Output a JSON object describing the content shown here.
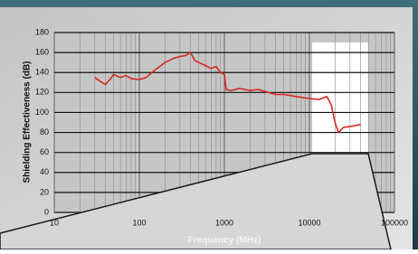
{
  "chart_data": {
    "type": "line",
    "xlabel": "Frequency (MHz)",
    "ylabel": "Shielding Effectiveness (dB)",
    "x": [
      30,
      35,
      40,
      45,
      50,
      60,
      70,
      80,
      100,
      120,
      150,
      180,
      200,
      250,
      300,
      350,
      400,
      450,
      500,
      600,
      700,
      800,
      900,
      1000,
      1050,
      1200,
      1500,
      2000,
      2500,
      3000,
      4000,
      5000,
      7000,
      10000,
      13000,
      16000,
      18000,
      20000,
      22000,
      25000,
      30000,
      35000,
      40000
    ],
    "values": [
      135,
      131,
      128,
      133,
      138,
      135,
      137,
      134,
      133,
      135,
      142,
      147,
      150,
      154,
      156,
      157,
      160,
      152,
      150,
      147,
      144,
      146,
      140,
      138,
      123,
      122,
      124,
      122,
      123,
      121,
      118,
      118,
      116,
      114,
      113,
      116,
      108,
      90,
      80,
      85,
      86,
      87,
      88
    ],
    "color": "#d42a20",
    "xlim": [
      10,
      100000
    ],
    "xticks": [
      10,
      100,
      1000,
      10000,
      100000
    ],
    "log_x": true,
    "ylim": [
      0,
      180
    ],
    "yticks": [
      0,
      20,
      40,
      60,
      80,
      100,
      120,
      140,
      160,
      180
    ],
    "grid": true
  }
}
